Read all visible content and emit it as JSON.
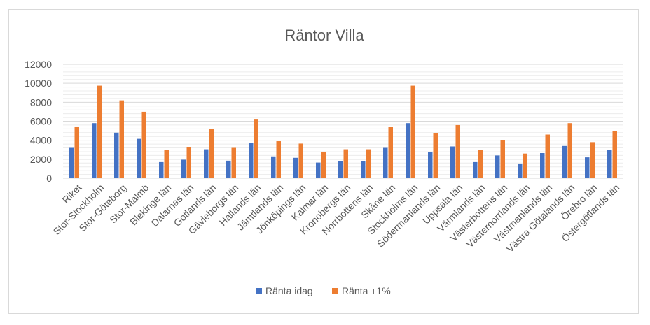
{
  "chart_data": {
    "type": "bar",
    "title": "Räntor Villa",
    "xlabel": "",
    "ylabel": "",
    "ylim": [
      0,
      12000
    ],
    "yticks": [
      0,
      2000,
      4000,
      6000,
      8000,
      10000,
      12000
    ],
    "grid": true,
    "legend_position": "bottom",
    "categories": [
      "Riket",
      "Stor-Stockholm",
      "Stor-Göteborg",
      "Stor-Malmö",
      "Blekinge län",
      "Dalarnas län",
      "Gotlands län",
      "Gävleborgs län",
      "Hallands län",
      "Jämtlands län",
      "Jönköpings län",
      "Kalmar län",
      "Kronobergs län",
      "Norrbottens län",
      "Skåne län",
      "Stockholms län",
      "Södermanlands län",
      "Uppsala län",
      "Värmlands län",
      "Västerbottens län",
      "Västernorrlands län",
      "Västmanlands län",
      "Västra Götalands län",
      "Örebro län",
      "Östergötlands län"
    ],
    "series": [
      {
        "name": "Ränta idag",
        "color": "#4472c4",
        "values": [
          3200,
          5800,
          4800,
          4150,
          1700,
          1950,
          3050,
          1850,
          3700,
          2300,
          2150,
          1650,
          1800,
          1800,
          3200,
          5800,
          2750,
          3350,
          1700,
          2400,
          1550,
          2650,
          3400,
          2200,
          2950
        ]
      },
      {
        "name": "Ränta +1%",
        "color": "#ed7d31",
        "values": [
          5450,
          9750,
          8200,
          7000,
          2950,
          3300,
          5200,
          3200,
          6250,
          3900,
          3650,
          2800,
          3050,
          3050,
          5400,
          9750,
          4750,
          5600,
          2950,
          4000,
          2600,
          4600,
          5800,
          3800,
          5000
        ]
      }
    ]
  }
}
